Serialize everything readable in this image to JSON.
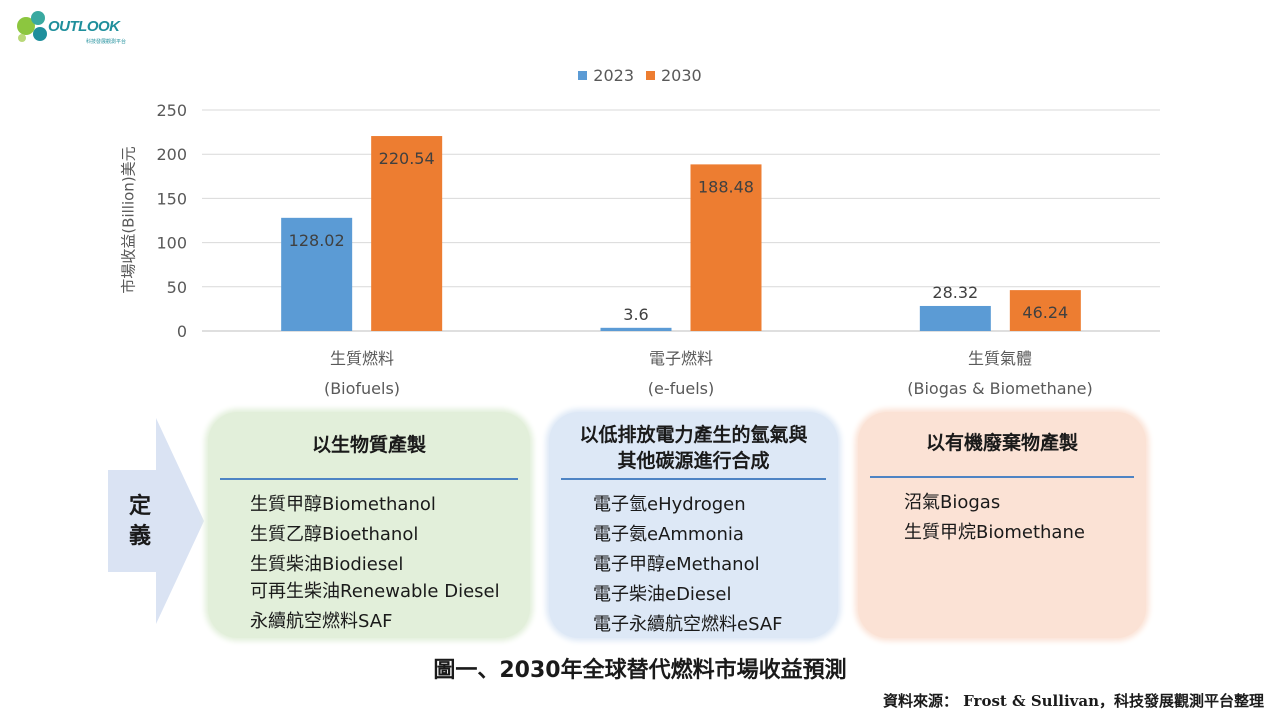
{
  "logo": {
    "text": "OUTLOOK",
    "subtext": "科技發展觀測平台"
  },
  "chart_data": {
    "type": "bar",
    "categories": [
      "生質燃料",
      "電子燃料",
      "生質氣體"
    ],
    "category_sublabels": [
      "(Biofuels)",
      "(e-fuels)",
      "(Biogas & Biomethane)"
    ],
    "series": [
      {
        "name": "2023",
        "values": [
          128.02,
          3.6,
          28.32
        ],
        "labels": [
          "128.02",
          "3.6",
          "28.32"
        ],
        "color": "#5b9bd5"
      },
      {
        "name": "2030",
        "values": [
          220.54,
          188.48,
          46.24
        ],
        "labels": [
          "220.54",
          "188.48",
          "46.24"
        ],
        "color": "#ed7d31"
      }
    ],
    "ylabel": "市場收益(Billion)美元",
    "ylim": [
      0,
      250
    ],
    "yticks": [
      0,
      50,
      100,
      150,
      200,
      250
    ],
    "grid": true,
    "legend_position": "top"
  },
  "definition": {
    "arrow_label": "定義",
    "boxes": [
      {
        "title": "以生物質產製",
        "items": [
          "生質甲醇Biomethanol",
          "生質乙醇Bioethanol",
          "生質柴油Biodiesel",
          "可再生柴油Renewable Diesel",
          "永續航空燃料SAF"
        ],
        "fill": "#e2efda"
      },
      {
        "title": "以低排放電力產生的氫氣與其他碳源進行合成",
        "items": [
          "電子氫eHydrogen",
          "電子氨eAmmonia",
          "電子甲醇eMethanol",
          "電子柴油eDiesel",
          "電子永續航空燃料eSAF"
        ],
        "fill": "#dde8f6"
      },
      {
        "title": "以有機廢棄物產製",
        "items": [
          "沼氣Biogas",
          "生質甲烷Biomethane"
        ],
        "fill": "#fbe2d5"
      }
    ]
  },
  "caption": "圖一、2030年全球替代燃料市場收益預測",
  "source": "資料來源： Frost & Sullivan，科技發展觀測平台整理"
}
